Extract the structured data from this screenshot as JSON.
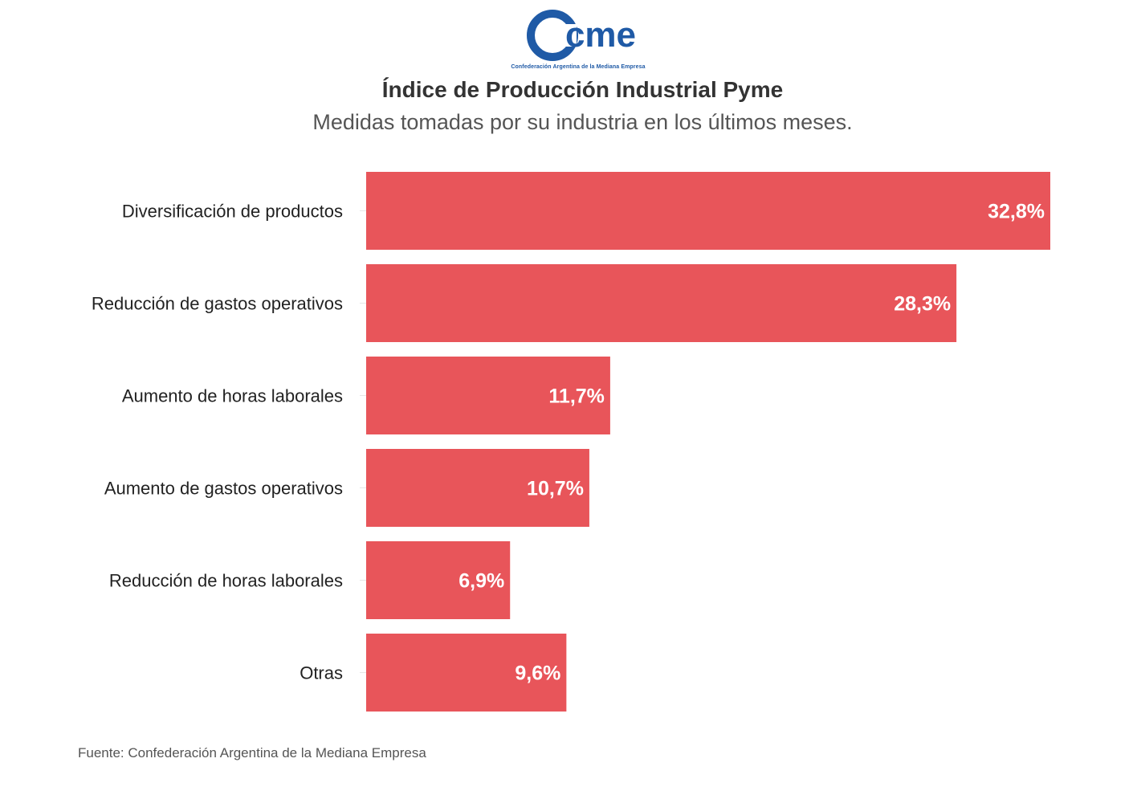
{
  "logo": {
    "wordmark": "cme",
    "caption": "Confederación Argentina de la Mediana Empresa"
  },
  "header": {
    "title": "Índice de Producción Industrial Pyme",
    "subtitle": "Medidas tomadas por su industria en los últimos meses."
  },
  "chart_data": {
    "type": "bar",
    "orientation": "horizontal",
    "categories": [
      "Diversificación de productos",
      "Reducción de gastos operativos",
      "Aumento de horas laborales",
      "Aumento de gastos operativos",
      "Reducción de horas laborales",
      "Otras"
    ],
    "values": [
      32.8,
      28.3,
      11.7,
      10.7,
      6.9,
      9.6
    ],
    "value_labels": [
      "32,8%",
      "28,3%",
      "11,7%",
      "10,7%",
      "6,9%",
      "9,6%"
    ],
    "xlim": [
      0,
      32.8
    ],
    "bar_color": "#e8555a",
    "label_color": "#ffffff",
    "grid": false,
    "legend": "none"
  },
  "footer": {
    "source": "Fuente: Confederación Argentina de la Mediana Empresa"
  },
  "colors": {
    "brand_blue": "#1f5aa6",
    "bar": "#e8555a",
    "title": "#333333",
    "subtitle": "#555555"
  }
}
